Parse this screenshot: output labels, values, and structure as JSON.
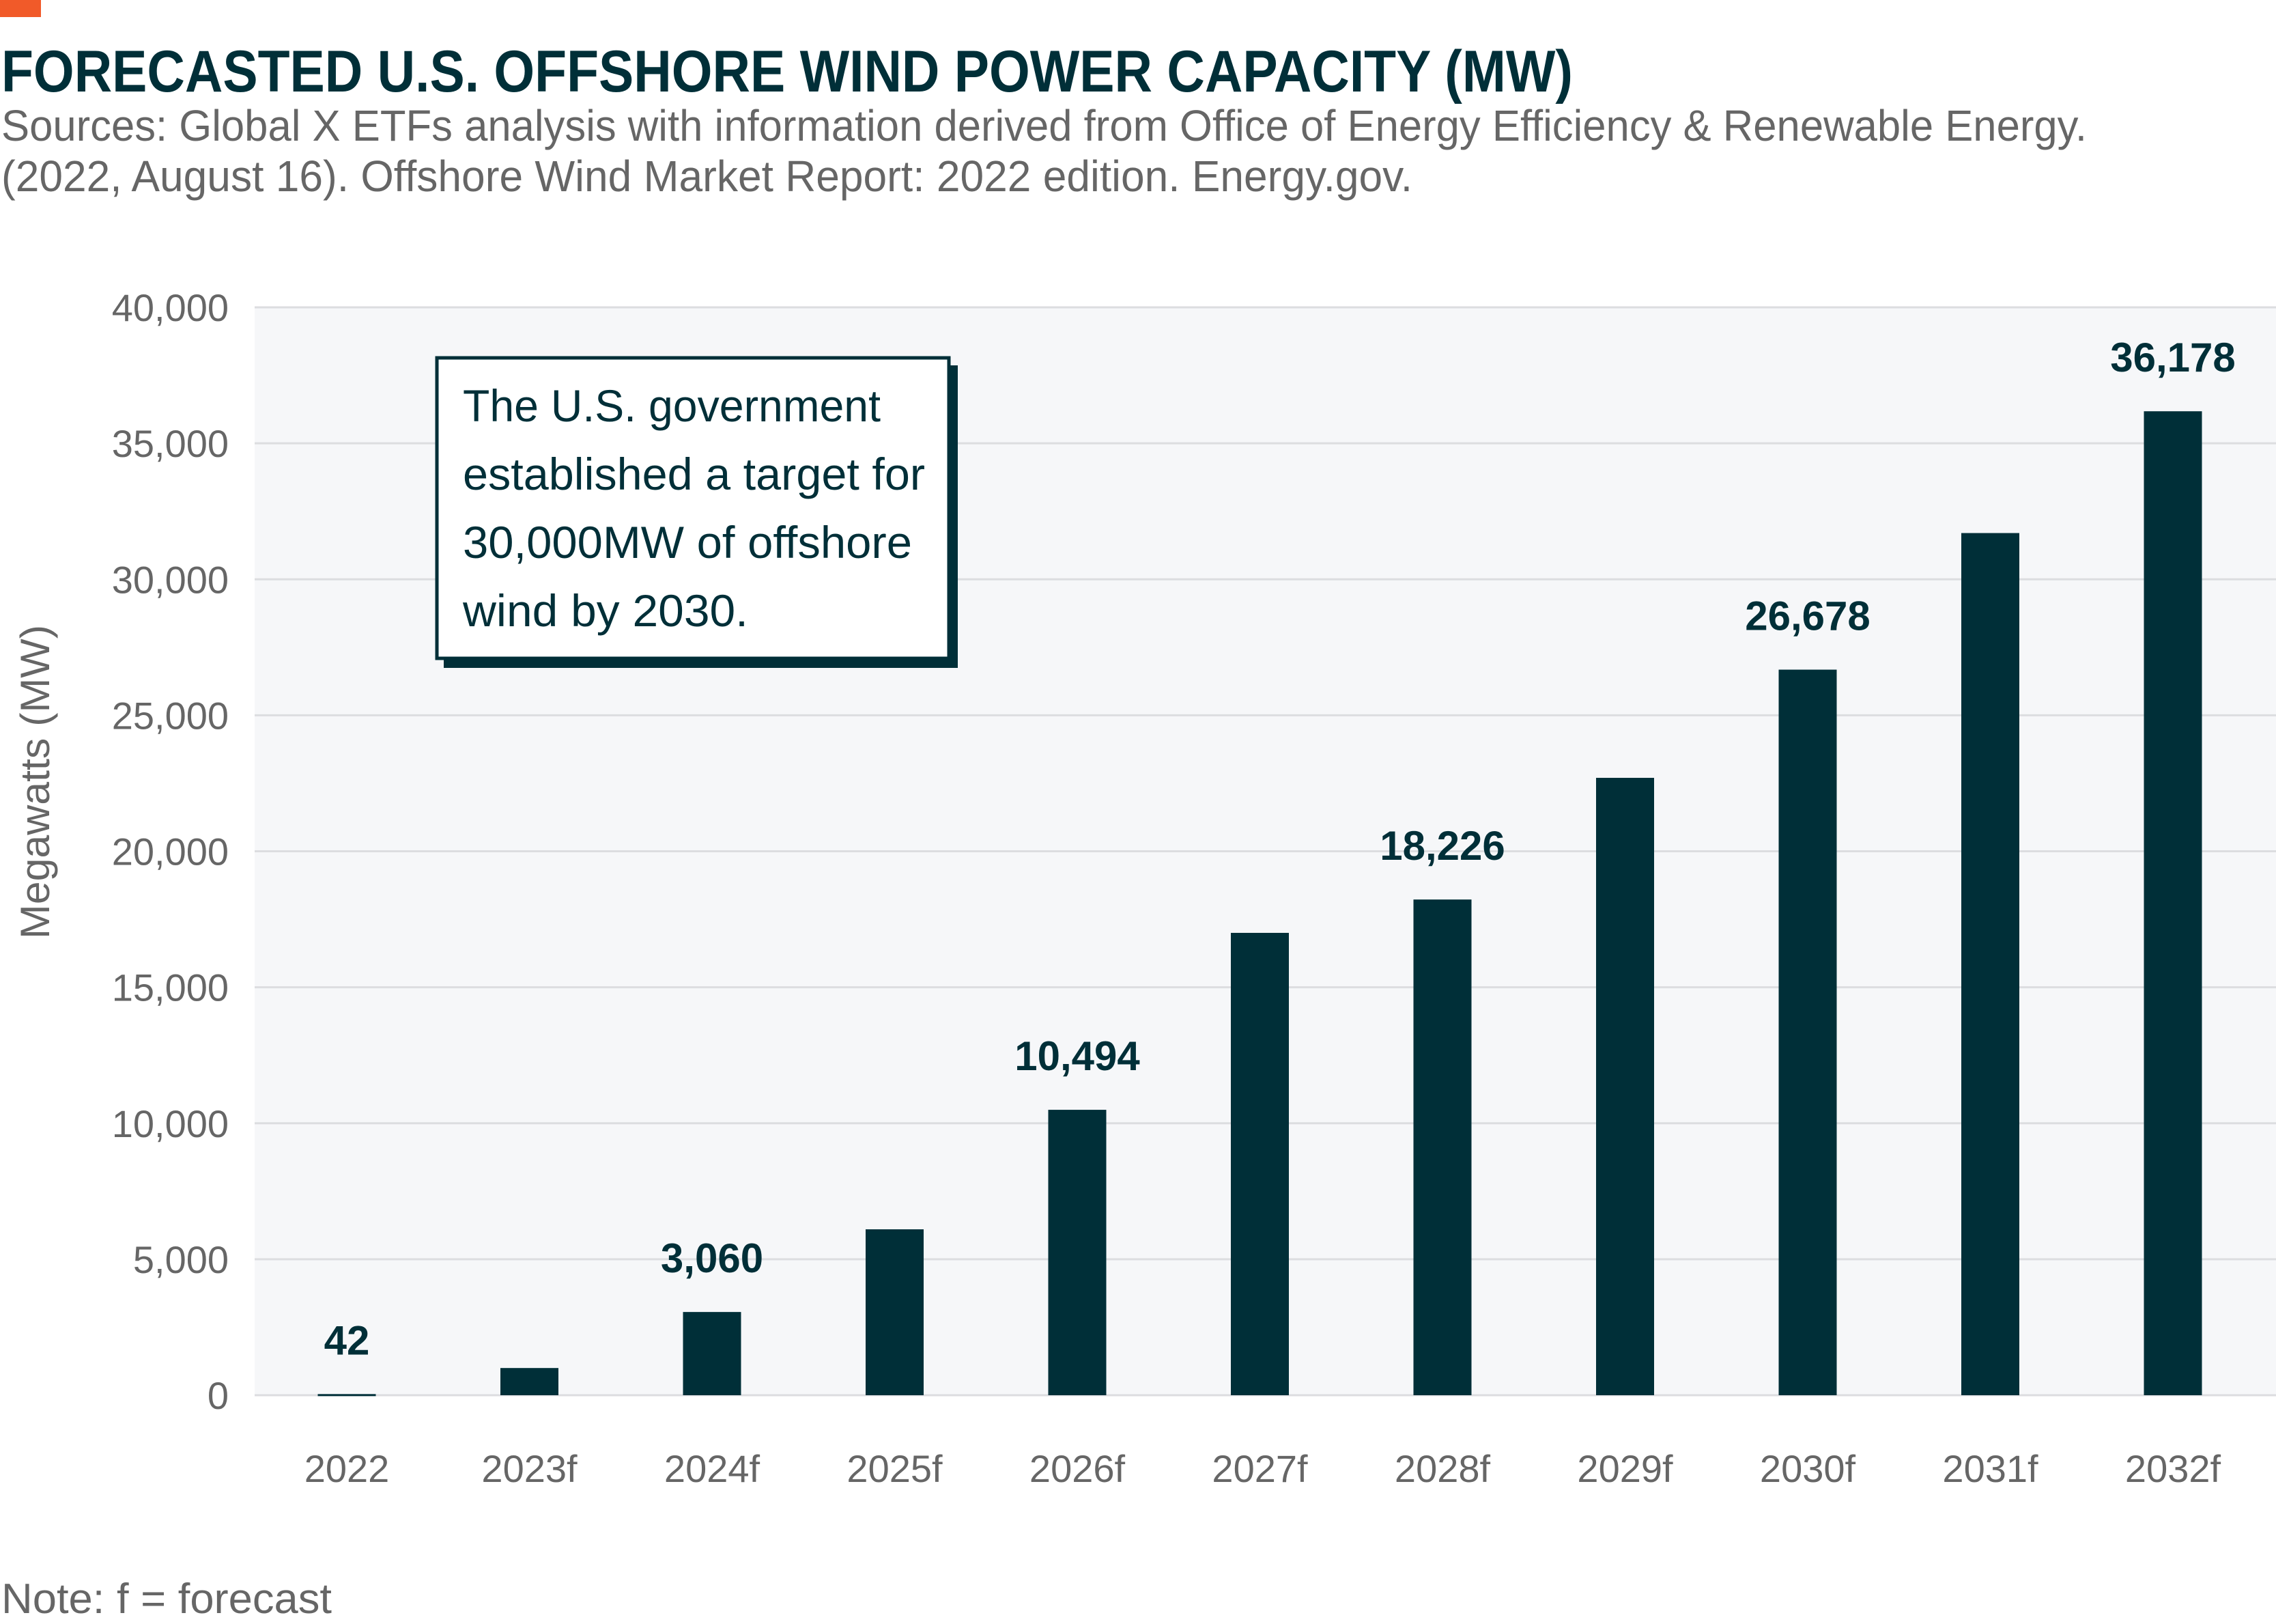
{
  "header": {
    "title": "FORECASTED U.S. OFFSHORE WIND POWER CAPACITY (MW)",
    "subtitle_lines": [
      "Sources: Global X ETFs analysis with information derived from Office of Energy Efficiency & Renewable Energy.",
      "(2022, August 16). Offshore Wind Market Report: 2022 edition. Energy.gov."
    ],
    "accent_color": "#f15a29"
  },
  "annotation": {
    "lines": [
      "The U.S. government",
      "established a target for",
      "30,000MW of offshore",
      "wind by 2030."
    ]
  },
  "note": "Note: f = forecast",
  "chart_data": {
    "type": "bar",
    "title": "FORECASTED U.S. OFFSHORE WIND POWER CAPACITY (MW)",
    "xlabel": "",
    "ylabel": "Megawatts (MW)",
    "ylim": [
      0,
      40000
    ],
    "yticks": [
      0,
      5000,
      10000,
      15000,
      20000,
      25000,
      30000,
      35000,
      40000
    ],
    "ytick_labels": [
      "0",
      "5,000",
      "10,000",
      "15,000",
      "20,000",
      "25,000",
      "30,000",
      "35,000",
      "40,000"
    ],
    "grid": true,
    "categories": [
      "2022",
      "2023f",
      "2024f",
      "2025f",
      "2026f",
      "2027f",
      "2028f",
      "2029f",
      "2030f",
      "2031f",
      "2032f"
    ],
    "values": [
      42,
      1000,
      3060,
      6100,
      10494,
      17000,
      18226,
      22700,
      26678,
      31700,
      36178
    ],
    "data_labels": [
      "42",
      "",
      "3,060",
      "",
      "10,494",
      "",
      "18,226",
      "",
      "26,678",
      "",
      "36,178"
    ],
    "bar_color": "#002f38",
    "plot_background": "#f6f7f9",
    "grid_color": "#dcdde0"
  }
}
